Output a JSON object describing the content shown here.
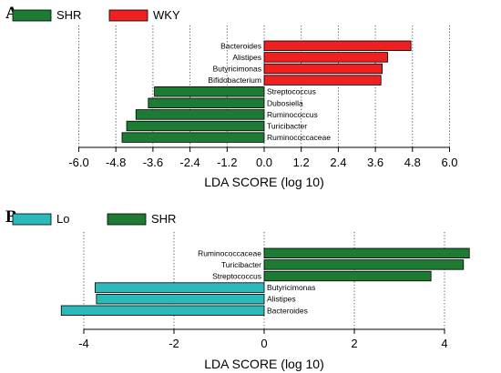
{
  "chart_data": [
    {
      "type": "bar",
      "panel_label": "A",
      "orientation": "horizontal",
      "legend": [
        {
          "name": "SHR",
          "color": "#1e7b34"
        },
        {
          "name": "WKY",
          "color": "#ee2020"
        }
      ],
      "legend_placement": "top-left",
      "categories": [
        "Bacteroides",
        "Alistipes",
        "Butyricimonas",
        "Bifidobacterium",
        "Streptococcus",
        "Dubosiella",
        "Ruminococcus",
        "Turicibacter",
        "Ruminococcaceae"
      ],
      "values": [
        4.75,
        4.0,
        3.82,
        3.78,
        -3.55,
        -3.75,
        -4.15,
        -4.45,
        -4.6
      ],
      "groups": [
        "WKY",
        "WKY",
        "WKY",
        "WKY",
        "SHR",
        "SHR",
        "SHR",
        "SHR",
        "SHR"
      ],
      "xlabel": "LDA SCORE (log 10)",
      "xticks": [
        -6.0,
        -4.8,
        -3.6,
        -2.4,
        -1.2,
        0.0,
        1.2,
        2.4,
        3.6,
        4.8,
        6.0
      ],
      "xtick_labels": [
        "-6.0",
        "-4.8",
        "-3.6",
        "-2.4",
        "-1.2",
        "0.0",
        "1.2",
        "2.4",
        "3.6",
        "4.8",
        "6.0"
      ],
      "xlim": [
        -6.6,
        6.6
      ],
      "grid": "vertical dotted"
    },
    {
      "type": "bar",
      "panel_label": "B",
      "orientation": "horizontal",
      "legend": [
        {
          "name": "Lo",
          "color": "#2cb9b9"
        },
        {
          "name": "SHR",
          "color": "#1e7b34"
        }
      ],
      "legend_placement": "top-left",
      "categories": [
        "Ruminococcaceae",
        "Turicibacter",
        "Streptococcus",
        "Butyricimonas",
        "Alistipes",
        "Bacteroides"
      ],
      "values": [
        4.55,
        4.42,
        3.7,
        -3.75,
        -3.72,
        -4.5
      ],
      "groups": [
        "SHR",
        "SHR",
        "SHR",
        "Lo",
        "Lo",
        "Lo"
      ],
      "xlabel": "LDA SCORE (log 10)",
      "xticks": [
        -4,
        -2,
        0,
        2,
        4
      ],
      "xtick_labels": [
        "-4",
        "-2",
        "0",
        "2",
        "4"
      ],
      "xlim": [
        -4.9,
        4.9
      ],
      "grid": "vertical dotted"
    }
  ]
}
